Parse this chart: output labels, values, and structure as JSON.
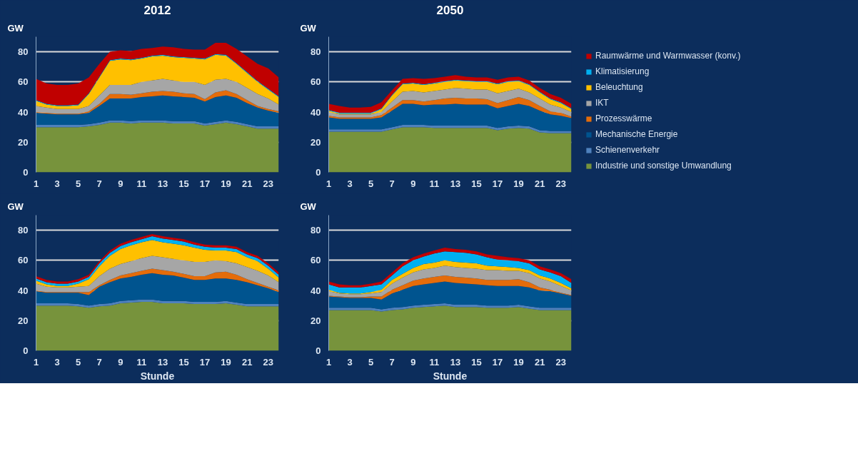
{
  "chart_data": [
    {
      "type": "area",
      "title": "2012",
      "ylabel": "GW",
      "stacked": true,
      "grid": "y",
      "x": [
        1,
        2,
        3,
        4,
        5,
        6,
        7,
        8,
        9,
        10,
        11,
        12,
        13,
        14,
        15,
        16,
        17,
        18,
        19,
        20,
        21,
        22,
        23,
        24
      ],
      "xlim": [
        1,
        24
      ],
      "xticks": [
        1,
        3,
        5,
        7,
        9,
        11,
        13,
        15,
        17,
        19,
        21,
        23
      ],
      "ylim": [
        0,
        90
      ],
      "yticks": [
        0,
        20,
        40,
        60,
        80
      ],
      "series": [
        {
          "color": "#77933c",
          "values": [
            30,
            30,
            30,
            30,
            30,
            30.5,
            31.5,
            33,
            33,
            32.5,
            33,
            33,
            33,
            32.5,
            32.5,
            32.5,
            31,
            32,
            33,
            32,
            30.5,
            29,
            29,
            29
          ]
        },
        {
          "color": "#4f81bd",
          "values": [
            1.5,
            1.5,
            1.5,
            1.5,
            1.5,
            1.5,
            1.5,
            1.5,
            1.5,
            1.5,
            1.5,
            1.5,
            1.5,
            1.5,
            1.5,
            1.5,
            1.5,
            1.5,
            1.5,
            1.5,
            1.5,
            1.5,
            1.5,
            1.5
          ]
        },
        {
          "color": "#00548f",
          "values": [
            8,
            7.5,
            7,
            7,
            7,
            7.5,
            11,
            14.5,
            14.5,
            15,
            15.5,
            16,
            16.5,
            16.5,
            16,
            15.5,
            14.5,
            16.5,
            16.5,
            16,
            14,
            12.5,
            10.5,
            9
          ]
        },
        {
          "color": "#e46c0a",
          "values": [
            0.5,
            0.5,
            0.5,
            0.5,
            0.5,
            1,
            1.5,
            3,
            3,
            2.5,
            2.5,
            3,
            3,
            3,
            2.5,
            2.5,
            1.5,
            3,
            3.5,
            2.5,
            2,
            1,
            1,
            1
          ]
        },
        {
          "color": "#a6a6a6",
          "values": [
            4,
            3.5,
            3,
            3,
            3,
            3.5,
            5.5,
            6,
            6,
            6.5,
            7.5,
            7.5,
            8,
            7.5,
            7.5,
            8,
            9.5,
            8.5,
            7.5,
            8,
            8,
            8,
            7,
            4.5
          ]
        },
        {
          "color": "#ffc000",
          "values": [
            3.5,
            2,
            2,
            2,
            2.5,
            8,
            12,
            16,
            17,
            16.5,
            15.5,
            16,
            15.5,
            15.5,
            16,
            15.5,
            17,
            16.5,
            15.5,
            12,
            10,
            8,
            6,
            5
          ]
        },
        {
          "color": "#00b0f0",
          "values": [
            0.5,
            0.5,
            0.5,
            0.5,
            0.5,
            0.5,
            0.5,
            0.5,
            0.5,
            0.5,
            0.5,
            0.5,
            0.5,
            0.5,
            0.5,
            0.5,
            0.5,
            0.5,
            0.5,
            0.5,
            0.5,
            0.5,
            0.5,
            0.5
          ]
        },
        {
          "color": "#c00000",
          "values": [
            14,
            13.5,
            13.5,
            13.5,
            14,
            10.5,
            8.5,
            5.5,
            5.5,
            5.5,
            6,
            5,
            5.5,
            6,
            5.5,
            5.5,
            6,
            7.5,
            8,
            9.5,
            10.5,
            11.5,
            13.5,
            12.5
          ]
        }
      ]
    },
    {
      "type": "area",
      "title": "2050",
      "ylabel": "GW",
      "stacked": true,
      "grid": "y",
      "legend": "right",
      "x": [
        1,
        2,
        3,
        4,
        5,
        6,
        7,
        8,
        9,
        10,
        11,
        12,
        13,
        14,
        15,
        16,
        17,
        18,
        19,
        20,
        21,
        22,
        23,
        24
      ],
      "xlim": [
        1,
        24
      ],
      "xticks": [
        1,
        3,
        5,
        7,
        9,
        11,
        13,
        15,
        17,
        19,
        21,
        23
      ],
      "ylim": [
        0,
        90
      ],
      "yticks": [
        0,
        20,
        40,
        60,
        80
      ],
      "series": [
        {
          "name": "Industrie und sonstige Umwandlung",
          "color": "#77933c",
          "values": [
            27,
            27,
            27,
            27,
            27,
            27,
            28.5,
            30,
            30,
            30,
            29.5,
            29.5,
            29.5,
            29.5,
            29.5,
            29.5,
            28,
            29,
            29.5,
            29,
            26.5,
            26,
            26,
            26
          ]
        },
        {
          "name": "Schienenverkehr",
          "color": "#4f81bd",
          "values": [
            1.5,
            1.5,
            1.5,
            1.5,
            1.5,
            1.5,
            1.5,
            1.5,
            1.5,
            1.5,
            1.5,
            1.5,
            1.5,
            1.5,
            1.5,
            1.5,
            1.5,
            1.5,
            1.5,
            1.5,
            1.5,
            1.5,
            1.5,
            1.5
          ]
        },
        {
          "name": "Mechanische Energie",
          "color": "#00548f",
          "values": [
            8,
            7,
            7,
            7,
            7,
            8,
            11,
            14,
            14,
            13,
            14,
            14,
            14.5,
            14,
            14,
            14,
            13,
            13.5,
            14.5,
            13.5,
            13,
            11,
            10,
            8.5
          ]
        },
        {
          "name": "Prozesswärme",
          "color": "#e46c0a",
          "values": [
            1,
            1,
            1,
            1,
            1,
            1.5,
            2,
            2.5,
            2.5,
            2.5,
            3,
            4,
            4,
            4,
            4,
            3.5,
            3.5,
            4,
            4.5,
            4,
            3,
            2,
            2,
            1
          ]
        },
        {
          "name": "IKT",
          "color": "#a6a6a6",
          "values": [
            2.5,
            2,
            2,
            2,
            2,
            2,
            4,
            5.5,
            6,
            6,
            6,
            6,
            6.5,
            6.5,
            6,
            6.5,
            6.5,
            6,
            5.5,
            5,
            5,
            4.5,
            3.5,
            3
          ]
        },
        {
          "name": "Beleuchtung",
          "color": "#ffc000",
          "values": [
            1,
            0.5,
            0.5,
            0.5,
            0.5,
            2,
            4,
            5,
            5,
            5,
            5,
            5,
            5,
            5,
            5,
            5,
            6,
            6,
            5,
            5,
            4,
            3.5,
            3,
            2
          ]
        },
        {
          "name": "Klimatisierung",
          "color": "#00b0f0",
          "values": [
            0.5,
            0.5,
            0.5,
            0.5,
            0.5,
            0.5,
            0.5,
            0.5,
            0.5,
            0.5,
            0.5,
            0.5,
            0.5,
            0.5,
            0.5,
            0.5,
            0.5,
            0.5,
            0.5,
            0.5,
            0.5,
            0.5,
            0.5,
            0.5
          ]
        },
        {
          "name": "Raumwärme und Warmwasser (konv.)",
          "color": "#c00000",
          "values": [
            4,
            4.5,
            3.5,
            3.5,
            4,
            4,
            3,
            3,
            3,
            3.5,
            3,
            3,
            3,
            2.5,
            2.5,
            2.5,
            2.5,
            2.5,
            2.5,
            2.5,
            2.5,
            3,
            3,
            3
          ]
        }
      ]
    },
    {
      "type": "area",
      "ylabel": "GW",
      "xlabel": "Stunde",
      "stacked": true,
      "grid": "y",
      "x": [
        1,
        2,
        3,
        4,
        5,
        6,
        7,
        8,
        9,
        10,
        11,
        12,
        13,
        14,
        15,
        16,
        17,
        18,
        19,
        20,
        21,
        22,
        23,
        24
      ],
      "xlim": [
        1,
        24
      ],
      "xticks": [
        1,
        3,
        5,
        7,
        9,
        11,
        13,
        15,
        17,
        19,
        21,
        23
      ],
      "ylim": [
        0,
        90
      ],
      "yticks": [
        0,
        20,
        40,
        60,
        80
      ],
      "series": [
        {
          "color": "#77933c",
          "values": [
            30,
            30,
            30,
            30,
            29.5,
            28.5,
            29.5,
            30,
            31.5,
            32,
            32.5,
            32.5,
            31.5,
            31.5,
            31.5,
            31,
            31,
            31,
            31.5,
            30.5,
            29.5,
            29.5,
            29.5,
            29.5
          ]
        },
        {
          "color": "#4f81bd",
          "values": [
            1.5,
            1.5,
            1.5,
            1.5,
            1.5,
            1.5,
            1.5,
            1.5,
            1.5,
            1.5,
            1.5,
            1.5,
            1.5,
            1.5,
            1.5,
            1.5,
            1.5,
            1.5,
            1.5,
            1.5,
            1.5,
            1.5,
            1.5,
            1.5
          ]
        },
        {
          "color": "#00548f",
          "values": [
            8,
            7,
            7,
            7,
            7.5,
            7,
            11.5,
            14,
            15,
            15.5,
            16.5,
            17.5,
            17.5,
            17,
            15.5,
            14.5,
            14.5,
            15.5,
            15,
            15,
            14.5,
            12.5,
            10.5,
            8
          ]
        },
        {
          "color": "#e46c0a",
          "values": [
            0.5,
            0.5,
            0.5,
            0.5,
            0.5,
            2,
            1,
            1.5,
            2,
            2.5,
            2.5,
            3,
            3,
            2.5,
            2.5,
            2.5,
            2.5,
            4,
            4.5,
            3.5,
            2,
            1.5,
            1,
            1
          ]
        },
        {
          "color": "#a6a6a6",
          "values": [
            4.5,
            3.5,
            3,
            3,
            3.5,
            4,
            6,
            7.5,
            7.5,
            8,
            8.5,
            8.5,
            8.5,
            8.5,
            9,
            9.5,
            9.5,
            8,
            7,
            7.5,
            8,
            8,
            7.5,
            5.5
          ]
        },
        {
          "color": "#ffc000",
          "values": [
            2,
            1.5,
            1,
            1,
            2,
            4.5,
            6.5,
            8.5,
            10,
            10.5,
            10.5,
            10.5,
            10,
            10,
            10,
            9.5,
            8,
            6.5,
            7,
            7.5,
            6.5,
            6.5,
            4.5,
            3
          ]
        },
        {
          "color": "#00b0f0",
          "values": [
            1.5,
            1.5,
            1.5,
            1.5,
            1.5,
            1.5,
            2,
            2,
            2,
            2,
            2,
            2.5,
            2.5,
            2.5,
            2.5,
            2,
            2,
            2,
            2,
            2,
            2,
            2,
            2,
            2
          ]
        },
        {
          "color": "#c00000",
          "values": [
            1.5,
            1.5,
            1.5,
            1.5,
            1.5,
            1.5,
            1.5,
            1.5,
            1.5,
            1.5,
            1.5,
            1.5,
            1.5,
            1.5,
            1.5,
            1.5,
            1.5,
            1.5,
            1.5,
            1.5,
            1.5,
            1.5,
            1.5,
            1.5
          ]
        }
      ]
    },
    {
      "type": "area",
      "ylabel": "GW",
      "xlabel": "Stunde",
      "stacked": true,
      "grid": "y",
      "x": [
        1,
        2,
        3,
        4,
        5,
        6,
        7,
        8,
        9,
        10,
        11,
        12,
        13,
        14,
        15,
        16,
        17,
        18,
        19,
        20,
        21,
        22,
        23,
        24
      ],
      "xlim": [
        1,
        24
      ],
      "xticks": [
        1,
        3,
        5,
        7,
        9,
        11,
        13,
        15,
        17,
        19,
        21,
        23
      ],
      "ylim": [
        0,
        90
      ],
      "yticks": [
        0,
        20,
        40,
        60,
        80
      ],
      "series": [
        {
          "color": "#77933c",
          "values": [
            27,
            27,
            27,
            27,
            27,
            26,
            27,
            27.5,
            28.5,
            29,
            29.5,
            30,
            29,
            29,
            29,
            28.5,
            28.5,
            28.5,
            29,
            28,
            27,
            27,
            27,
            27
          ]
        },
        {
          "color": "#4f81bd",
          "values": [
            1.5,
            1.5,
            1.5,
            1.5,
            1.5,
            1.5,
            1.5,
            1.5,
            1.5,
            1.5,
            1.5,
            1.5,
            1.5,
            1.5,
            1.5,
            1.5,
            1.5,
            1.5,
            1.5,
            1.5,
            1.5,
            1.5,
            1.5,
            1.5
          ]
        },
        {
          "color": "#00548f",
          "values": [
            7.5,
            7,
            6.5,
            6.5,
            6.5,
            6.5,
            9.5,
            11.5,
            13,
            13.5,
            14,
            14.5,
            14.5,
            14,
            13.5,
            13.5,
            13,
            13,
            12.5,
            12.5,
            11.5,
            11,
            9.5,
            8
          ]
        },
        {
          "color": "#e46c0a",
          "values": [
            0.5,
            0.5,
            0.5,
            0.5,
            1,
            2,
            2.5,
            3,
            3.5,
            4,
            4,
            4,
            4,
            4,
            4,
            3.5,
            4,
            4,
            4.5,
            3.5,
            2,
            1,
            0.5,
            0.5
          ]
        },
        {
          "color": "#a6a6a6",
          "values": [
            3,
            2,
            2,
            2,
            2,
            3,
            4,
            5,
            5.5,
            6,
            6,
            6.5,
            6.5,
            6.5,
            6.5,
            6.5,
            6.5,
            6,
            5.5,
            6,
            6,
            5.5,
            4.5,
            3
          ]
        },
        {
          "color": "#ffc000",
          "values": [
            1,
            0.5,
            0.5,
            0.5,
            1,
            1.5,
            2.5,
            2.5,
            3,
            3.5,
            3.5,
            3.5,
            3.5,
            3.5,
            3.5,
            3,
            2.5,
            2.5,
            2,
            2,
            2,
            2,
            2,
            1.5
          ]
        },
        {
          "color": "#00b0f0",
          "values": [
            3.5,
            3.5,
            4,
            4,
            4,
            3.5,
            3,
            5,
            5,
            5,
            6,
            6,
            6.5,
            6.5,
            6,
            5.5,
            4.5,
            4.5,
            4.5,
            4.5,
            4,
            4,
            4.5,
            3.5
          ]
        },
        {
          "color": "#c00000",
          "values": [
            2,
            2,
            1.5,
            1.5,
            1.5,
            2,
            2,
            2,
            2,
            2,
            2,
            2.5,
            2,
            2,
            2,
            2,
            2.5,
            2,
            2,
            2,
            2,
            2,
            2,
            2.5
          ]
        }
      ]
    }
  ]
}
